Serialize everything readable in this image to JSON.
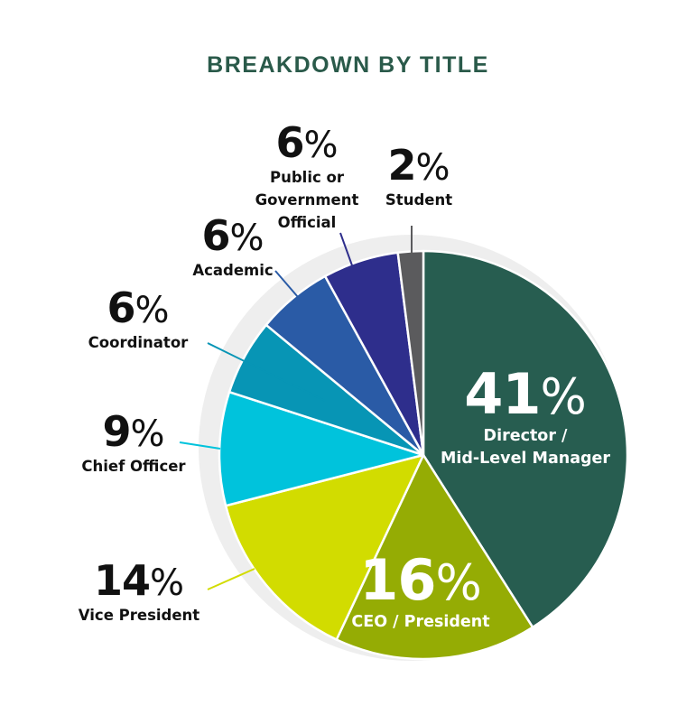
{
  "chart_data": {
    "type": "pie",
    "title": "BREAKDOWN BY TITLE",
    "unit": "%",
    "slices": [
      {
        "number": "41",
        "label": "Director / Mid-Level Manager",
        "value": 41,
        "color": "#275d50",
        "label_color": "#ffffff"
      },
      {
        "number": "16",
        "label": "CEO / President",
        "value": 16,
        "color": "#95ac04",
        "label_color": "#ffffff"
      },
      {
        "number": "14",
        "label": "Vice President",
        "value": 14,
        "color": "#d2dc00",
        "label_color": "#111111"
      },
      {
        "number": "9",
        "label": "Chief Officer",
        "value": 9,
        "color": "#00c3dc",
        "label_color": "#111111"
      },
      {
        "number": "6",
        "label": "Coordinator",
        "value": 6,
        "color": "#0795b5",
        "label_color": "#111111"
      },
      {
        "number": "6",
        "label": "Academic",
        "value": 6,
        "color": "#2a5ba6",
        "label_color": "#111111"
      },
      {
        "number": "6",
        "label": "Public or Government Official",
        "value": 6,
        "color": "#2e2e8c",
        "label_color": "#111111"
      },
      {
        "number": "2",
        "label": "Student",
        "value": 2,
        "color": "#5b5b5d",
        "label_color": "#111111"
      }
    ],
    "shadow_color": "#eeeeee"
  }
}
